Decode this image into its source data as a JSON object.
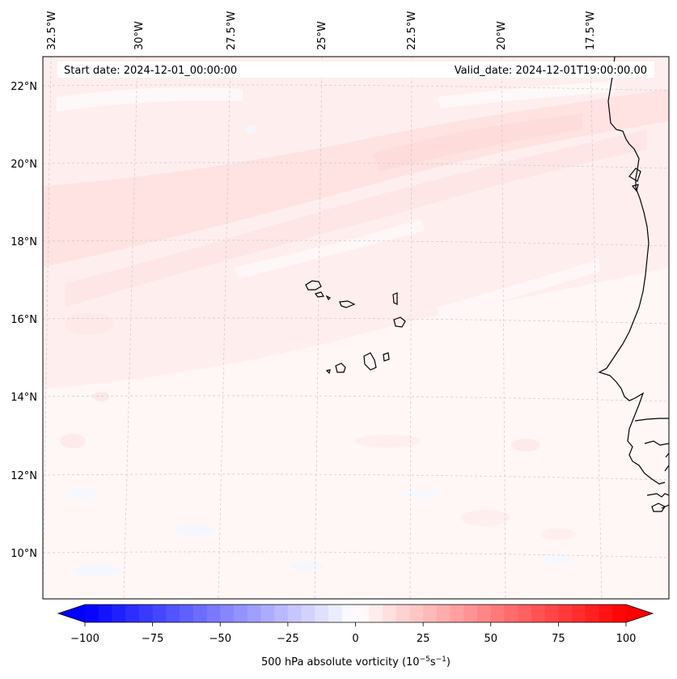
{
  "header": {
    "start_date": "Start date: 2024-12-01_00:00:00",
    "valid_date": "Valid_date: 2024-12-01T19:00:00.00"
  },
  "longitude_labels": [
    "32.5°W",
    "30°W",
    "27.5°W",
    "25°W",
    "22.5°W",
    "20°W",
    "17.5°W"
  ],
  "latitude_labels": [
    "22°N",
    "20°N",
    "18°N",
    "16°N",
    "14°N",
    "12°N",
    "10°N"
  ],
  "colorbar": {
    "min": -100,
    "max": 100,
    "ticks": [
      "−100",
      "−75",
      "−50",
      "−25",
      "0",
      "25",
      "50",
      "75",
      "100"
    ],
    "label": "500 hPa absolute vorticity (10",
    "label_exp1": "−5",
    "label_mid": "s",
    "label_exp2": "−1",
    "label_end": ")",
    "neg_color": "#0000ff",
    "pos_color": "#ff0000"
  },
  "field": {
    "variable": "500 hPa absolute vorticity",
    "dominant_range": [
      0,
      10
    ],
    "colors": {
      "weak_pos": "#ffe9e9",
      "moderate_pos": "#ffd9d9",
      "near_zero": "#fff6f6",
      "weak_neg": "#f6f8ff"
    }
  }
}
